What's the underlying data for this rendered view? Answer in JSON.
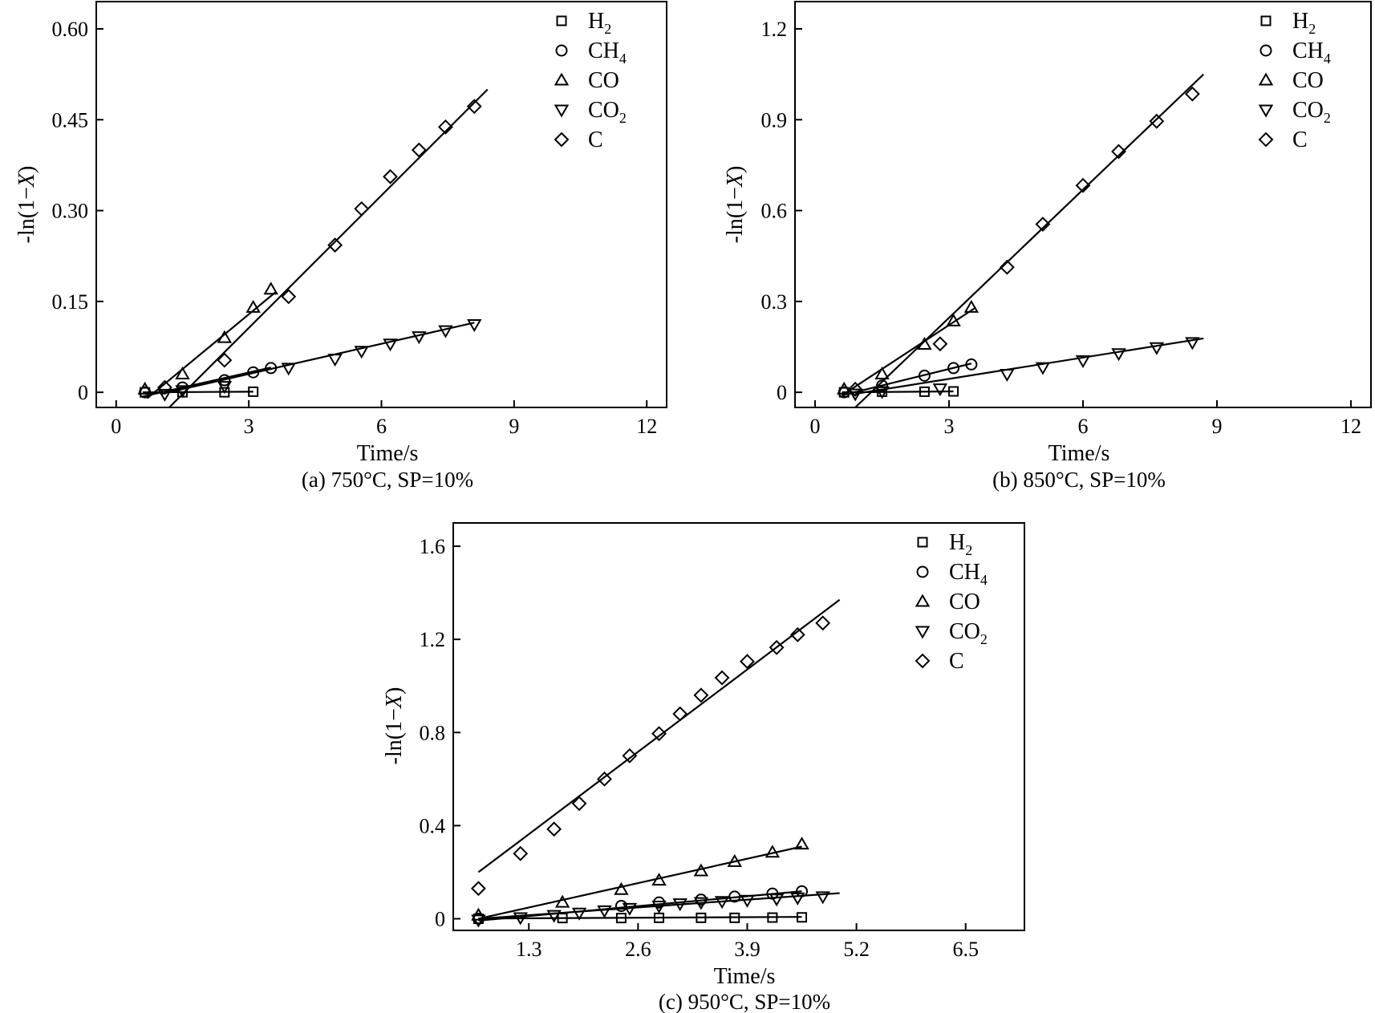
{
  "chart_data": [
    {
      "id": "a",
      "type": "scatter",
      "caption": "(a) 750°C, SP=10%",
      "xlabel": "Time/s",
      "ylabel_prefix": "-ln(1−",
      "ylabel_var": "X",
      "ylabel_suffix": ")",
      "xlim": [
        -0.45,
        12.45
      ],
      "ylim": [
        -0.025,
        0.645
      ],
      "xticks": [
        0,
        3,
        6,
        9,
        12
      ],
      "xtick_labels": [
        "0",
        "3",
        "6",
        "9",
        "12"
      ],
      "yticks": [
        0,
        0.15,
        0.3,
        0.45,
        0.6
      ],
      "ytick_labels": [
        "0",
        "0.15",
        "0.30",
        "0.45",
        "0.60"
      ],
      "legend_position": "top-right",
      "series": [
        {
          "name": "H",
          "sub": "2",
          "marker": "square",
          "x": [
            0.65,
            1.5,
            2.45,
            3.1
          ],
          "y": [
            0.0,
            0.0,
            0.0,
            0.001
          ],
          "fit": [
            [
              0.6,
              0.0
            ],
            [
              3.1,
              0.001
            ]
          ]
        },
        {
          "name": "CH",
          "sub": "4",
          "marker": "circle",
          "x": [
            0.65,
            1.5,
            2.45,
            3.1,
            3.5
          ],
          "y": [
            0.0,
            0.008,
            0.02,
            0.033,
            0.04
          ],
          "fit": [
            [
              0.6,
              -0.007
            ],
            [
              3.5,
              0.041
            ]
          ]
        },
        {
          "name": "CO",
          "sub": "",
          "marker": "triangle-up",
          "x": [
            0.65,
            1.5,
            2.45,
            3.1,
            3.5
          ],
          "y": [
            0.005,
            0.03,
            0.09,
            0.14,
            0.17
          ],
          "fit": [
            [
              0.7,
              -0.01
            ],
            [
              3.6,
              0.165
            ]
          ]
        },
        {
          "name": "CO",
          "sub": "2",
          "marker": "triangle-down",
          "x": [
            1.1,
            1.5,
            2.45,
            3.9,
            4.95,
            5.55,
            6.2,
            6.85,
            7.45,
            8.1
          ],
          "y": [
            -0.003,
            0.003,
            0.01,
            0.04,
            0.055,
            0.068,
            0.08,
            0.092,
            0.102,
            0.112
          ],
          "fit": [
            [
              1.0,
              -0.003
            ],
            [
              8.1,
              0.115
            ]
          ]
        },
        {
          "name": "C",
          "sub": "",
          "marker": "diamond",
          "x": [
            1.1,
            2.45,
            3.9,
            4.95,
            5.55,
            6.2,
            6.85,
            7.45,
            8.1
          ],
          "y": [
            0.008,
            0.053,
            0.158,
            0.243,
            0.303,
            0.356,
            0.4,
            0.438,
            0.472
          ],
          "fit": [
            [
              1.2,
              -0.025
            ],
            [
              8.4,
              0.5
            ]
          ]
        }
      ]
    },
    {
      "id": "b",
      "type": "scatter",
      "caption": "(b) 850°C, SP=10%",
      "xlabel": "Time/s",
      "ylabel_prefix": "-ln(1−",
      "ylabel_var": "X",
      "ylabel_suffix": ")",
      "xlim": [
        -0.45,
        12.45
      ],
      "ylim": [
        -0.05,
        1.29
      ],
      "xticks": [
        0,
        3,
        6,
        9,
        12
      ],
      "xtick_labels": [
        "0",
        "3",
        "6",
        "9",
        "12"
      ],
      "yticks": [
        0,
        0.3,
        0.6,
        0.9,
        1.2
      ],
      "ytick_labels": [
        "0",
        "0.3",
        "0.6",
        "0.9",
        "1.2"
      ],
      "legend_position": "top-right",
      "series": [
        {
          "name": "H",
          "sub": "2",
          "marker": "square",
          "x": [
            0.65,
            1.5,
            2.45,
            3.1
          ],
          "y": [
            0.0,
            0.002,
            0.002,
            0.003
          ],
          "fit": [
            [
              0.6,
              0.0
            ],
            [
              3.1,
              0.003
            ]
          ]
        },
        {
          "name": "CH",
          "sub": "4",
          "marker": "circle",
          "x": [
            0.65,
            1.5,
            2.45,
            3.1,
            3.5
          ],
          "y": [
            0.0,
            0.022,
            0.055,
            0.08,
            0.092
          ],
          "fit": [
            [
              0.6,
              -0.01
            ],
            [
              3.5,
              0.095
            ]
          ]
        },
        {
          "name": "CO",
          "sub": "",
          "marker": "triangle-up",
          "x": [
            0.65,
            1.5,
            2.45,
            3.1,
            3.5
          ],
          "y": [
            0.01,
            0.06,
            0.158,
            0.235,
            0.28
          ],
          "fit": [
            [
              0.6,
              -0.01
            ],
            [
              3.6,
              0.28
            ]
          ]
        },
        {
          "name": "CO",
          "sub": "2",
          "marker": "triangle-down",
          "x": [
            0.9,
            1.5,
            2.8,
            4.3,
            5.1,
            6.0,
            6.8,
            7.65,
            8.45
          ],
          "y": [
            -0.005,
            0.003,
            0.012,
            0.06,
            0.082,
            0.105,
            0.128,
            0.148,
            0.165
          ],
          "fit": [
            [
              0.9,
              -0.005
            ],
            [
              8.7,
              0.178
            ]
          ]
        },
        {
          "name": "C",
          "sub": "",
          "marker": "diamond",
          "x": [
            0.9,
            2.8,
            4.3,
            5.1,
            6.0,
            6.8,
            7.65,
            8.45
          ],
          "y": [
            0.01,
            0.16,
            0.413,
            0.555,
            0.683,
            0.795,
            0.895,
            0.985
          ],
          "fit": [
            [
              0.9,
              -0.05
            ],
            [
              8.7,
              1.05
            ]
          ]
        }
      ]
    },
    {
      "id": "c",
      "type": "scatter",
      "caption": "(c) 950°C, SP=10%",
      "xlabel": "Time/s",
      "ylabel_prefix": "-ln(1−",
      "ylabel_var": "X",
      "ylabel_suffix": ")",
      "xlim": [
        0.4,
        7.2
      ],
      "ylim": [
        -0.05,
        1.7
      ],
      "xticks": [
        1.3,
        2.6,
        3.9,
        5.2,
        6.5
      ],
      "xtick_labels": [
        "1.3",
        "2.6",
        "3.9",
        "5.2",
        "6.5"
      ],
      "yticks": [
        0,
        0.4,
        0.8,
        1.2,
        1.6
      ],
      "ytick_labels": [
        "0",
        "0.4",
        "0.8",
        "1.2",
        "1.6"
      ],
      "legend_position": "top-right",
      "series": [
        {
          "name": "H",
          "sub": "2",
          "marker": "square",
          "x": [
            0.7,
            1.7,
            2.4,
            2.85,
            3.35,
            3.75,
            4.2,
            4.55
          ],
          "y": [
            0.0,
            0.003,
            0.003,
            0.004,
            0.004,
            0.004,
            0.005,
            0.006
          ],
          "fit": [
            [
              0.7,
              0.001
            ],
            [
              4.55,
              0.008
            ]
          ]
        },
        {
          "name": "CH",
          "sub": "4",
          "marker": "circle",
          "x": [
            0.7,
            2.4,
            2.85,
            3.35,
            3.75,
            4.2,
            4.55
          ],
          "y": [
            0.0,
            0.055,
            0.07,
            0.082,
            0.095,
            0.108,
            0.118
          ],
          "fit": [
            [
              0.7,
              -0.008
            ],
            [
              4.55,
              0.118
            ]
          ]
        },
        {
          "name": "CO",
          "sub": "",
          "marker": "triangle-up",
          "x": [
            0.7,
            1.7,
            2.4,
            2.85,
            3.35,
            3.75,
            4.2,
            4.55
          ],
          "y": [
            0.015,
            0.07,
            0.125,
            0.165,
            0.205,
            0.245,
            0.285,
            0.32
          ],
          "fit": [
            [
              0.7,
              0.0
            ],
            [
              4.55,
              0.31
            ]
          ]
        },
        {
          "name": "CO",
          "sub": "2",
          "marker": "triangle-down",
          "x": [
            0.7,
            1.2,
            1.6,
            1.9,
            2.2,
            2.5,
            2.85,
            3.1,
            3.35,
            3.6,
            3.9,
            4.25,
            4.5,
            4.8
          ],
          "y": [
            -0.005,
            0.005,
            0.015,
            0.025,
            0.035,
            0.045,
            0.055,
            0.065,
            0.07,
            0.075,
            0.08,
            0.085,
            0.09,
            0.095
          ],
          "fit": [
            [
              0.7,
              0.0
            ],
            [
              5.0,
              0.11
            ]
          ]
        },
        {
          "name": "C",
          "sub": "",
          "marker": "diamond",
          "x": [
            0.7,
            1.2,
            1.6,
            1.9,
            2.2,
            2.5,
            2.85,
            3.1,
            3.35,
            3.6,
            3.9,
            4.25,
            4.5,
            4.8
          ],
          "y": [
            0.13,
            0.28,
            0.385,
            0.495,
            0.6,
            0.7,
            0.795,
            0.88,
            0.96,
            1.035,
            1.105,
            1.165,
            1.22,
            1.27
          ],
          "fit": [
            [
              0.7,
              0.2
            ],
            [
              5.0,
              1.37
            ]
          ]
        }
      ]
    }
  ]
}
